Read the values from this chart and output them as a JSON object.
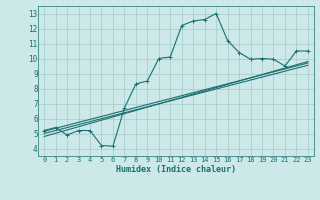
{
  "xlabel": "Humidex (Indice chaleur)",
  "bg_color": "#cce8e8",
  "grid_color": "#aacfcf",
  "line_color": "#1a7070",
  "xlim": [
    -0.5,
    23.5
  ],
  "ylim": [
    3.5,
    13.5
  ],
  "xticks": [
    0,
    1,
    2,
    3,
    4,
    5,
    6,
    7,
    8,
    9,
    10,
    11,
    12,
    13,
    14,
    15,
    16,
    17,
    18,
    19,
    20,
    21,
    22,
    23
  ],
  "yticks": [
    4,
    5,
    6,
    7,
    8,
    9,
    10,
    11,
    12,
    13
  ],
  "line1_x": [
    0,
    1,
    2,
    3,
    4,
    5,
    6,
    7,
    8,
    9,
    10,
    11,
    12,
    13,
    14,
    15,
    16,
    17,
    18,
    19,
    20,
    21,
    22,
    23
  ],
  "line1_y": [
    5.2,
    5.4,
    4.9,
    5.2,
    5.2,
    4.2,
    4.15,
    6.7,
    8.3,
    8.5,
    10.0,
    10.1,
    12.2,
    12.5,
    12.6,
    13.0,
    11.2,
    10.4,
    9.95,
    10.0,
    9.95,
    9.5,
    10.5,
    10.5
  ],
  "line2_x": [
    0,
    23
  ],
  "line2_y": [
    4.8,
    9.8
  ],
  "line3_x": [
    0,
    23
  ],
  "line3_y": [
    5.0,
    9.55
  ],
  "line4_x": [
    0,
    23
  ],
  "line4_y": [
    5.15,
    9.7
  ],
  "tick_fontsize": 5,
  "xlabel_fontsize": 6,
  "marker_size": 2.5,
  "line_width": 0.8
}
